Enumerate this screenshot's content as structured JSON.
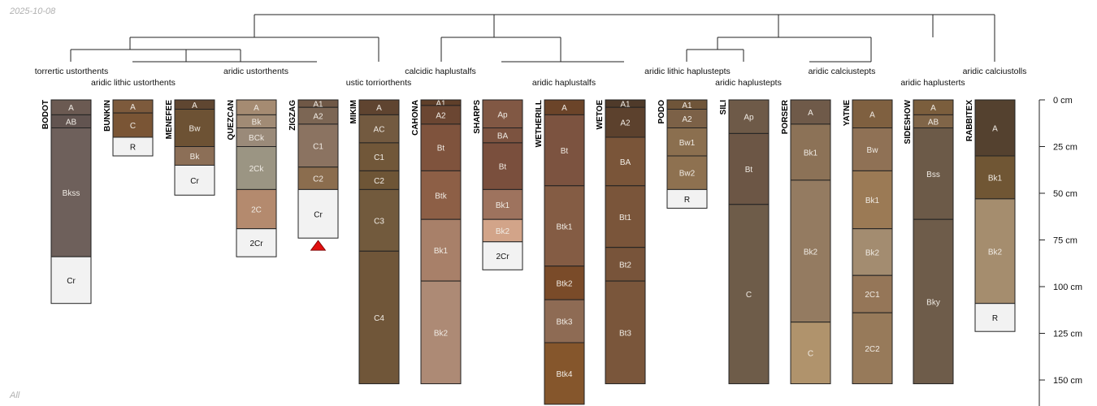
{
  "date_stamp": "2025-10-08",
  "corner_label": "All",
  "depth_axis": {
    "unit": "cm",
    "ticks": [
      {
        "depth": 0,
        "label": "0 cm"
      },
      {
        "depth": 25,
        "label": "25 cm"
      },
      {
        "depth": 50,
        "label": "50 cm"
      },
      {
        "depth": 75,
        "label": "75 cm"
      },
      {
        "depth": 100,
        "label": "100 cm"
      },
      {
        "depth": 125,
        "label": "125 cm"
      },
      {
        "depth": 150,
        "label": "150 cm"
      }
    ]
  },
  "taxa": [
    "torrertic ustorthents",
    "aridic lithic ustorthents",
    "aridic ustorthents",
    "ustic torriorthents",
    "calcidic haplustalfs",
    "aridic haplustalfs",
    "aridic lithic haplustepts",
    "aridic haplustepts",
    "aridic calciustepts",
    "aridic haplusterts",
    "aridic calciustolls"
  ],
  "profiles": [
    {
      "name": "BODOT",
      "horizons": [
        {
          "name": "A",
          "top": 0,
          "bottom": 8,
          "color": "#6b5a52"
        },
        {
          "name": "AB",
          "top": 8,
          "bottom": 15,
          "color": "#625450"
        },
        {
          "name": "Bkss",
          "top": 15,
          "bottom": 84,
          "color": "#6e605b"
        },
        {
          "name": "Cr",
          "top": 84,
          "bottom": 109,
          "color": "#f2f2f2"
        }
      ]
    },
    {
      "name": "BUNKIN",
      "horizons": [
        {
          "name": "A",
          "top": 0,
          "bottom": 7,
          "color": "#7d5a3c"
        },
        {
          "name": "C",
          "top": 7,
          "bottom": 20,
          "color": "#7a5535"
        },
        {
          "name": "R",
          "top": 20,
          "bottom": 30,
          "color": "#f2f2f2"
        }
      ]
    },
    {
      "name": "MENEFEE",
      "horizons": [
        {
          "name": "A",
          "top": 0,
          "bottom": 5,
          "color": "#5f4631"
        },
        {
          "name": "Bw",
          "top": 5,
          "bottom": 25,
          "color": "#6d5234"
        },
        {
          "name": "Bk",
          "top": 25,
          "bottom": 35,
          "color": "#8c6f57"
        },
        {
          "name": "Cr",
          "top": 35,
          "bottom": 51,
          "color": "#f2f2f2"
        }
      ]
    },
    {
      "name": "QUEZCAN",
      "horizons": [
        {
          "name": "A",
          "top": 0,
          "bottom": 8,
          "color": "#a58b72"
        },
        {
          "name": "Bk",
          "top": 8,
          "bottom": 15,
          "color": "#a18b75"
        },
        {
          "name": "BCk",
          "top": 15,
          "bottom": 25,
          "color": "#9a8a79"
        },
        {
          "name": "2Ck",
          "top": 25,
          "bottom": 48,
          "color": "#9b9583"
        },
        {
          "name": "2C",
          "top": 48,
          "bottom": 69,
          "color": "#b48a6e"
        },
        {
          "name": "2Cr",
          "top": 69,
          "bottom": 84,
          "color": "#f2f2f2"
        }
      ]
    },
    {
      "name": "ZIGZAG",
      "horizons": [
        {
          "name": "A1",
          "top": 0,
          "bottom": 4,
          "color": "#6f5846"
        },
        {
          "name": "A2",
          "top": 4,
          "bottom": 13,
          "color": "#7c6654"
        },
        {
          "name": "C1",
          "top": 13,
          "bottom": 36,
          "color": "#8b7361"
        },
        {
          "name": "C2",
          "top": 36,
          "bottom": 48,
          "color": "#8b6d4e"
        },
        {
          "name": "Cr",
          "top": 48,
          "bottom": 74,
          "color": "#f2f2f2"
        }
      ],
      "truncated": true
    },
    {
      "name": "MIKIM",
      "horizons": [
        {
          "name": "A",
          "top": 0,
          "bottom": 8,
          "color": "#5f4430"
        },
        {
          "name": "AC",
          "top": 8,
          "bottom": 23,
          "color": "#735a40"
        },
        {
          "name": "C1",
          "top": 23,
          "bottom": 38,
          "color": "#715739"
        },
        {
          "name": "C2",
          "top": 38,
          "bottom": 48,
          "color": "#6e5536"
        },
        {
          "name": "C3",
          "top": 48,
          "bottom": 81,
          "color": "#725a3d"
        },
        {
          "name": "C4",
          "top": 81,
          "bottom": 152,
          "color": "#705639"
        }
      ]
    },
    {
      "name": "CAHONA",
      "horizons": [
        {
          "name": "A1",
          "top": 0,
          "bottom": 3,
          "color": "#5f3f2a"
        },
        {
          "name": "A2",
          "top": 3,
          "bottom": 13,
          "color": "#6b4632"
        },
        {
          "name": "Bt",
          "top": 13,
          "bottom": 38,
          "color": "#7f533d"
        },
        {
          "name": "Btk",
          "top": 38,
          "bottom": 64,
          "color": "#8d5f46"
        },
        {
          "name": "Bk1",
          "top": 64,
          "bottom": 97,
          "color": "#a88069"
        },
        {
          "name": "Bk2",
          "top": 97,
          "bottom": 152,
          "color": "#ad8a75"
        }
      ]
    },
    {
      "name": "SHARPS",
      "horizons": [
        {
          "name": "Ap",
          "top": 0,
          "bottom": 15,
          "color": "#815844"
        },
        {
          "name": "BA",
          "top": 15,
          "bottom": 23,
          "color": "#7c5340"
        },
        {
          "name": "Bt",
          "top": 23,
          "bottom": 48,
          "color": "#7a4f3d"
        },
        {
          "name": "Bk1",
          "top": 48,
          "bottom": 64,
          "color": "#9e735e"
        },
        {
          "name": "Bk2",
          "top": 64,
          "bottom": 76,
          "color": "#d2a489"
        },
        {
          "name": "2Cr",
          "top": 76,
          "bottom": 91,
          "color": "#f2f2f2"
        }
      ]
    },
    {
      "name": "WETHERILL",
      "horizons": [
        {
          "name": "A",
          "top": 0,
          "bottom": 8,
          "color": "#6b4429"
        },
        {
          "name": "Bt",
          "top": 8,
          "bottom": 46,
          "color": "#7c5340"
        },
        {
          "name": "Btk1",
          "top": 46,
          "bottom": 89,
          "color": "#845c44"
        },
        {
          "name": "Btk2",
          "top": 89,
          "bottom": 107,
          "color": "#7a4b29"
        },
        {
          "name": "Btk3",
          "top": 107,
          "bottom": 130,
          "color": "#8e6b54"
        },
        {
          "name": "Btk4",
          "top": 130,
          "bottom": 163,
          "color": "#85562c"
        }
      ]
    },
    {
      "name": "WETOE",
      "horizons": [
        {
          "name": "A1",
          "top": 0,
          "bottom": 4,
          "color": "#4f3a2a"
        },
        {
          "name": "A2",
          "top": 4,
          "bottom": 20,
          "color": "#5c412d"
        },
        {
          "name": "BA",
          "top": 20,
          "bottom": 46,
          "color": "#7a5539"
        },
        {
          "name": "Bt1",
          "top": 46,
          "bottom": 79,
          "color": "#7a553a"
        },
        {
          "name": "Bt2",
          "top": 79,
          "bottom": 97,
          "color": "#78543a"
        },
        {
          "name": "Bt3",
          "top": 97,
          "bottom": 152,
          "color": "#7a563b"
        }
      ]
    },
    {
      "name": "PODO",
      "horizons": [
        {
          "name": "A1",
          "top": 0,
          "bottom": 5,
          "color": "#6f5539"
        },
        {
          "name": "A2",
          "top": 5,
          "bottom": 15,
          "color": "#7c6147"
        },
        {
          "name": "Bw1",
          "top": 15,
          "bottom": 30,
          "color": "#8b6f4f"
        },
        {
          "name": "Bw2",
          "top": 30,
          "bottom": 48,
          "color": "#8e7150"
        },
        {
          "name": "R",
          "top": 48,
          "bottom": 58,
          "color": "#f2f2f2"
        }
      ]
    },
    {
      "name": "SILI",
      "horizons": [
        {
          "name": "Ap",
          "top": 0,
          "bottom": 18,
          "color": "#6e5a48"
        },
        {
          "name": "Bt",
          "top": 18,
          "bottom": 56,
          "color": "#6c5645"
        },
        {
          "name": "C",
          "top": 56,
          "bottom": 152,
          "color": "#6e5c49"
        }
      ]
    },
    {
      "name": "PORSER",
      "horizons": [
        {
          "name": "A",
          "top": 0,
          "bottom": 13,
          "color": "#6f5a49"
        },
        {
          "name": "Bk1",
          "top": 13,
          "bottom": 43,
          "color": "#8c7257"
        },
        {
          "name": "Bk2",
          "top": 43,
          "bottom": 119,
          "color": "#947b61"
        },
        {
          "name": "C",
          "top": 119,
          "bottom": 152,
          "color": "#b0936c"
        }
      ]
    },
    {
      "name": "YATNE",
      "horizons": [
        {
          "name": "A",
          "top": 0,
          "bottom": 15,
          "color": "#7f6040"
        },
        {
          "name": "Bw",
          "top": 15,
          "bottom": 38,
          "color": "#8f7155"
        },
        {
          "name": "Bk1",
          "top": 38,
          "bottom": 69,
          "color": "#9b7a55"
        },
        {
          "name": "Bk2",
          "top": 69,
          "bottom": 94,
          "color": "#a38c70"
        },
        {
          "name": "2C1",
          "top": 94,
          "bottom": 114,
          "color": "#957658"
        },
        {
          "name": "2C2",
          "top": 114,
          "bottom": 152,
          "color": "#977a5a"
        }
      ]
    },
    {
      "name": "SIDESHOW",
      "horizons": [
        {
          "name": "A",
          "top": 0,
          "bottom": 8,
          "color": "#7b5e3d"
        },
        {
          "name": "AB",
          "top": 8,
          "bottom": 15,
          "color": "#806548"
        },
        {
          "name": "Bss",
          "top": 15,
          "bottom": 64,
          "color": "#6c5a48"
        },
        {
          "name": "Bky",
          "top": 64,
          "bottom": 152,
          "color": "#6e5c4a"
        }
      ]
    },
    {
      "name": "RABBITEX",
      "horizons": [
        {
          "name": "A",
          "top": 0,
          "bottom": 30,
          "color": "#54412f"
        },
        {
          "name": "Bk1",
          "top": 30,
          "bottom": 53,
          "color": "#705634"
        },
        {
          "name": "Bk2",
          "top": 53,
          "bottom": 109,
          "color": "#a58d6e"
        },
        {
          "name": "R",
          "top": 109,
          "bottom": 124,
          "color": "#f2f2f2"
        }
      ]
    }
  ]
}
